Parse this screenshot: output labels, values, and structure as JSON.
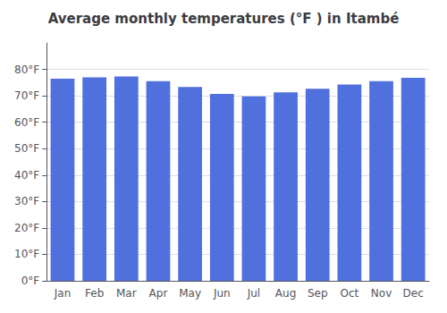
{
  "chart_data": {
    "type": "bar",
    "title": "Average monthly temperatures (°F ) in Itambé",
    "categories": [
      "Jan",
      "Feb",
      "Mar",
      "Apr",
      "May",
      "Jun",
      "Jul",
      "Aug",
      "Sep",
      "Oct",
      "Nov",
      "Dec"
    ],
    "values": [
      76.5,
      77.0,
      77.3,
      75.5,
      73.3,
      70.7,
      69.8,
      71.3,
      72.7,
      74.3,
      75.5,
      76.8
    ],
    "ylim": [
      0,
      90
    ],
    "yticks": [
      {
        "value": 0,
        "label": "0°F"
      },
      {
        "value": 10,
        "label": "10°F"
      },
      {
        "value": 20,
        "label": "20°F"
      },
      {
        "value": 30,
        "label": "30°F"
      },
      {
        "value": 40,
        "label": "40°F"
      },
      {
        "value": 50,
        "label": "50°F"
      },
      {
        "value": 60,
        "label": "60°F"
      },
      {
        "value": 70,
        "label": "70°F"
      },
      {
        "value": 80,
        "label": "80°F"
      }
    ],
    "grid": true
  }
}
